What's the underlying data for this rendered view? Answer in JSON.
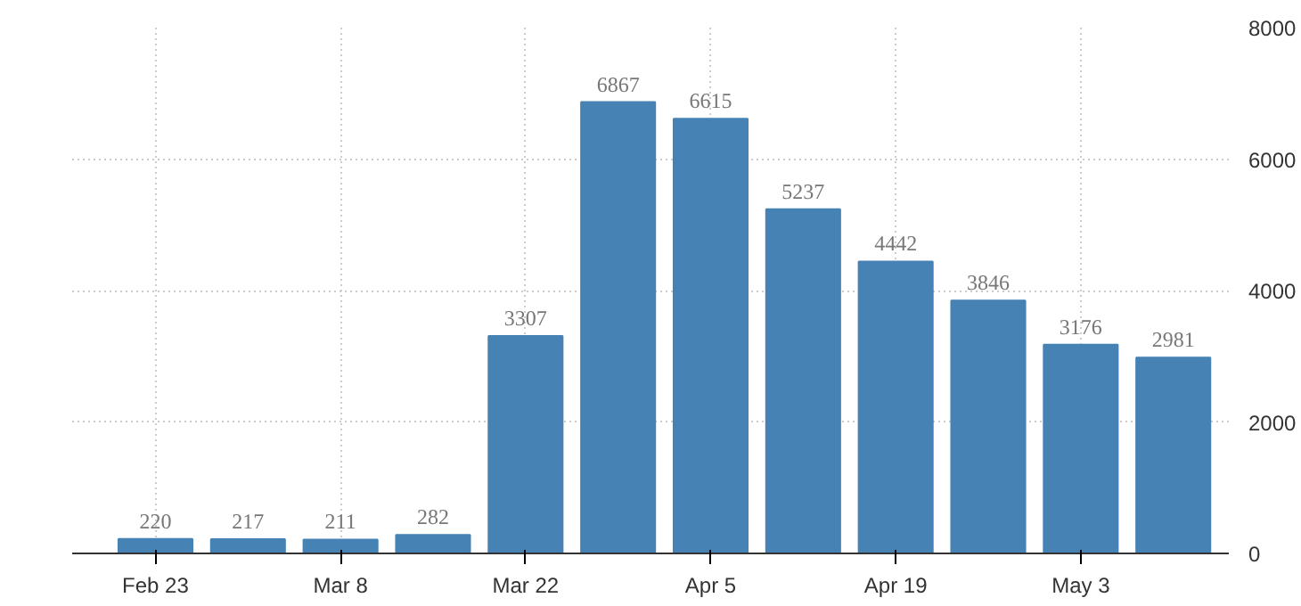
{
  "chart_data": {
    "type": "bar",
    "categories": [
      "Feb 23",
      null,
      "Mar 8",
      null,
      "Mar 22",
      null,
      "Apr 5",
      null,
      "Apr 19",
      null,
      "May 3",
      null
    ],
    "values": [
      220,
      217,
      211,
      282,
      3307,
      6867,
      6615,
      5237,
      4442,
      3846,
      3176,
      2981
    ],
    "color": "#4682b4",
    "ylim": [
      0,
      8000
    ],
    "yticks": [
      0,
      2000,
      4000,
      6000,
      8000
    ],
    "grid": true,
    "data_labels": true
  }
}
